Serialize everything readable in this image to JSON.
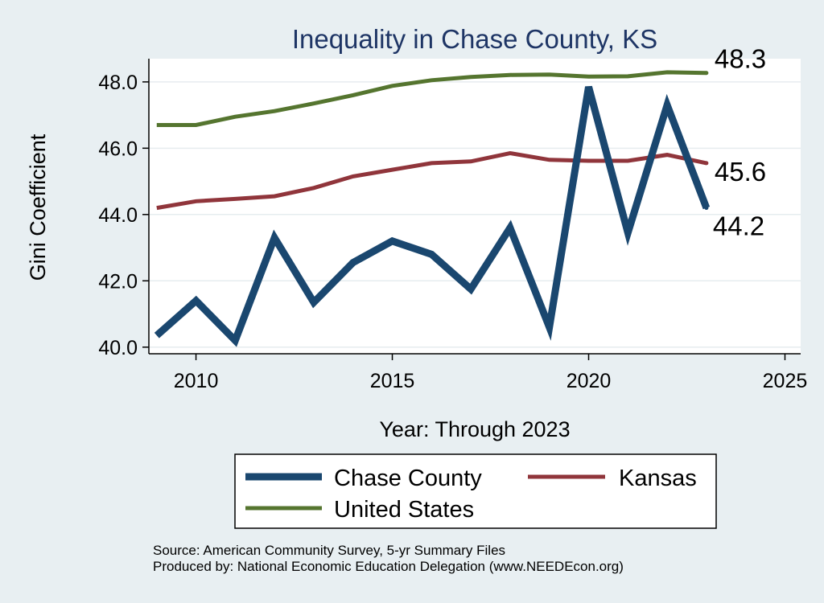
{
  "chart_data": {
    "type": "line",
    "title": "Inequality in Chase County, KS",
    "xlabel": "Year: Through 2023",
    "ylabel": "Gini Coefficient",
    "xlim": [
      2008.8,
      2025.4
    ],
    "ylim": [
      39.8,
      48.7
    ],
    "x_ticks": [
      2010,
      2015,
      2020,
      2025
    ],
    "y_ticks": [
      40.0,
      42.0,
      44.0,
      46.0,
      48.0
    ],
    "x_tick_labels": [
      "2010",
      "2015",
      "2020",
      "2025"
    ],
    "y_tick_labels": [
      "40.0",
      "42.0",
      "44.0",
      "46.0",
      "48.0"
    ],
    "grid": true,
    "x": [
      2009,
      2010,
      2011,
      2012,
      2013,
      2014,
      2015,
      2016,
      2017,
      2018,
      2019,
      2020,
      2021,
      2022,
      2023
    ],
    "series": [
      {
        "name": "Chase County",
        "color": "#1a476f",
        "values": [
          40.35,
          41.4,
          40.2,
          43.3,
          41.35,
          42.55,
          43.2,
          42.8,
          41.75,
          43.6,
          40.6,
          47.85,
          43.45,
          47.3,
          44.2
        ],
        "end_label": "44.2"
      },
      {
        "name": "Kansas",
        "color": "#90353b",
        "values": [
          44.2,
          44.4,
          44.47,
          44.55,
          44.8,
          45.15,
          45.35,
          45.55,
          45.6,
          45.85,
          45.65,
          45.62,
          45.62,
          45.8,
          45.55
        ],
        "end_label": "45.6"
      },
      {
        "name": "United States",
        "color": "#55752f",
        "values": [
          46.7,
          46.7,
          46.95,
          47.12,
          47.35,
          47.6,
          47.88,
          48.05,
          48.15,
          48.21,
          48.22,
          48.16,
          48.17,
          48.29,
          48.27
        ],
        "end_label": "48.3"
      }
    ],
    "legend": {
      "position": "bottom",
      "items": [
        "Chase County",
        "Kansas",
        "United States"
      ]
    },
    "notes": [
      "Source: American Community Survey, 5-yr Summary Files",
      "Produced by: National Economic Education Delegation (www.NEEDEcon.org)"
    ]
  },
  "colors": {
    "page_background": "#e8eff2",
    "plot_background": "#ffffff",
    "title_color": "#1e3565",
    "grid_color": "#e6ecef"
  }
}
